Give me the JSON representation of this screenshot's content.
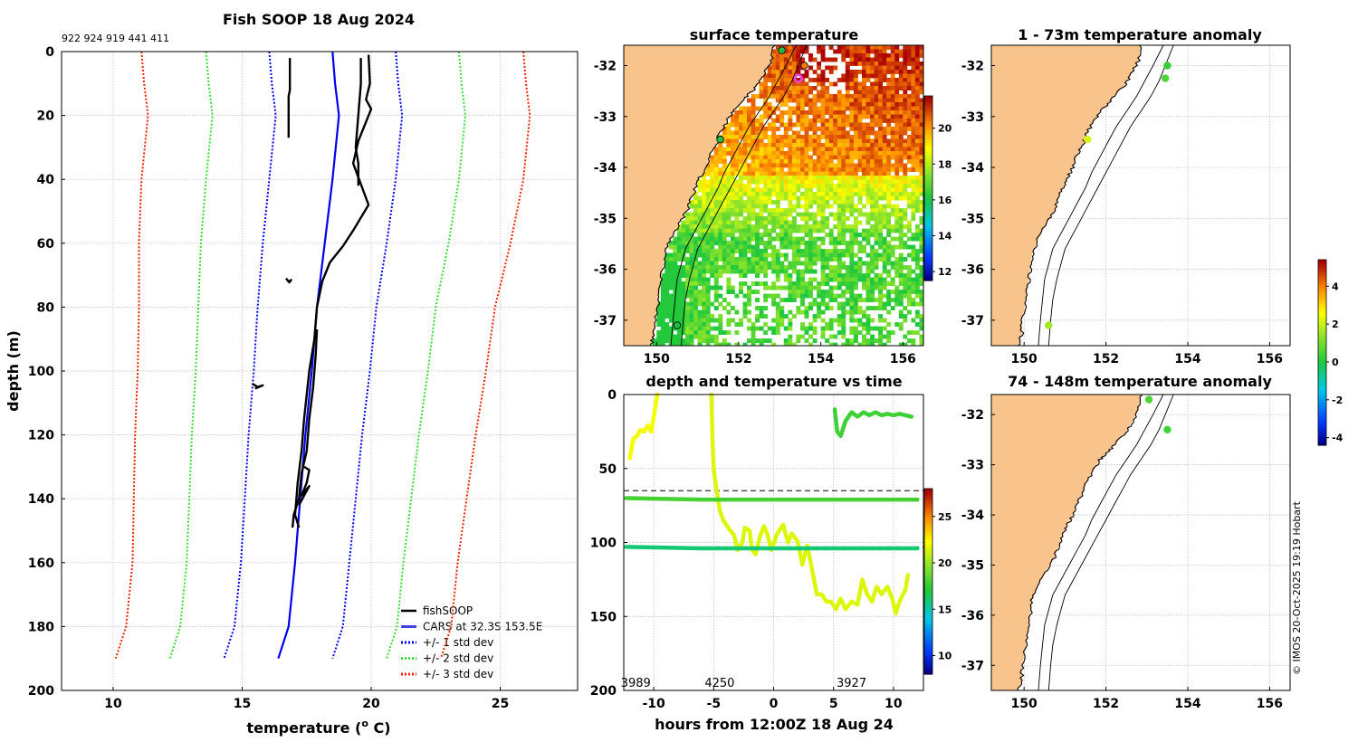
{
  "chart_data": [
    {
      "id": "profile",
      "type": "line",
      "title": "Fish SOOP 18 Aug 2024",
      "ids_text": "922 924 919 441 411",
      "xlabel": "temperature (",
      "xlabel_sup": "o",
      "xlabel_tail": " C)",
      "ylabel": "depth (m)",
      "xlim": [
        8,
        28
      ],
      "ylim": [
        200,
        0
      ],
      "xticks": [
        10,
        15,
        20,
        25
      ],
      "yticks": [
        0,
        20,
        40,
        60,
        80,
        100,
        120,
        140,
        160,
        180,
        200
      ],
      "legend": [
        "fishSOOP",
        "CARS at 32.3S 153.5E",
        "+/- 1 std dev",
        "+/- 2 std dev",
        "+/- 3 std dev"
      ],
      "legend_colors": [
        "#000000",
        "#0000ee",
        "#0000ee",
        "#33dd33",
        "#ee2200"
      ],
      "cars_mean": [
        [
          18.5,
          0
        ],
        [
          18.6,
          10
        ],
        [
          18.75,
          20
        ],
        [
          18.5,
          40
        ],
        [
          18.2,
          60
        ],
        [
          17.9,
          80
        ],
        [
          17.7,
          100
        ],
        [
          17.45,
          120
        ],
        [
          17.25,
          140
        ],
        [
          17.05,
          160
        ],
        [
          16.8,
          180
        ],
        [
          16.4,
          190
        ]
      ],
      "std1": {
        "offsets": [
          2.45,
          2.45,
          2.45,
          2.45,
          2.4,
          2.3,
          2.25,
          2.2,
          2.15,
          2.1,
          2.1,
          2.1
        ]
      },
      "std2": {
        "offsets": [
          4.9,
          4.9,
          4.9,
          4.9,
          4.8,
          4.6,
          4.5,
          4.4,
          4.3,
          4.2,
          4.2,
          4.2
        ]
      },
      "std3": {
        "offsets": [
          7.4,
          7.4,
          7.4,
          7.4,
          7.2,
          6.9,
          6.75,
          6.6,
          6.45,
          6.3,
          6.3,
          6.3
        ]
      },
      "fish_series": [
        [
          [
            19.9,
            1
          ],
          [
            19.95,
            10
          ],
          [
            19.8,
            15
          ],
          [
            20.0,
            18
          ],
          [
            19.8,
            22
          ],
          [
            19.5,
            28
          ],
          [
            19.3,
            35
          ],
          [
            19.9,
            48
          ],
          [
            19.3,
            56
          ],
          [
            18.9,
            61
          ],
          [
            18.4,
            66
          ],
          [
            18.1,
            72
          ],
          [
            17.9,
            80
          ],
          [
            17.8,
            90
          ],
          [
            17.6,
            100
          ],
          [
            17.4,
            115
          ],
          [
            17.3,
            125
          ],
          [
            17.15,
            135
          ],
          [
            17.1,
            140
          ],
          [
            17.05,
            145
          ],
          [
            17.2,
            149
          ]
        ],
        [
          [
            19.6,
            2
          ],
          [
            19.6,
            10
          ],
          [
            19.55,
            15
          ],
          [
            19.4,
            30
          ],
          [
            19.5,
            35
          ],
          [
            19.5,
            42
          ]
        ],
        [
          [
            16.85,
            2
          ],
          [
            16.85,
            12
          ],
          [
            16.8,
            14
          ],
          [
            16.8,
            27
          ]
        ],
        [
          [
            16.7,
            71
          ],
          [
            16.8,
            72
          ],
          [
            16.9,
            71.5
          ],
          [
            16.8,
            72.5
          ]
        ],
        [
          [
            15.4,
            104
          ],
          [
            15.6,
            105
          ],
          [
            15.8,
            104.5
          ],
          [
            15.5,
            105.5
          ]
        ],
        [
          [
            17.9,
            87
          ],
          [
            17.85,
            95
          ],
          [
            17.75,
            105
          ],
          [
            17.6,
            115
          ],
          [
            17.5,
            125
          ],
          [
            17.3,
            132
          ],
          [
            17.2,
            140
          ],
          [
            17.0,
            145
          ],
          [
            16.95,
            149
          ]
        ],
        [
          [
            17.4,
            130
          ],
          [
            17.6,
            131
          ],
          [
            17.5,
            135
          ],
          [
            17.3,
            139
          ],
          [
            17.6,
            136
          ],
          [
            17.2,
            142
          ]
        ]
      ]
    },
    {
      "id": "sst",
      "type": "heatmap",
      "title": "surface temperature",
      "xlim": [
        149.2,
        156.5
      ],
      "ylim": [
        -37.5,
        -31.6
      ],
      "xticks": [
        150,
        152,
        154,
        156
      ],
      "yticks": [
        -32,
        -33,
        -34,
        -35,
        -36,
        -37
      ],
      "colorbar_range": [
        11.5,
        21.8
      ],
      "colorbar_ticks": [
        12,
        14,
        16,
        18,
        20
      ],
      "markers": [
        {
          "lon": 153.05,
          "lat": -31.7,
          "color": "#22bb44"
        },
        {
          "lon": 153.6,
          "lat": -32.0,
          "color": "#ee7700"
        },
        {
          "lon": 153.45,
          "lat": -32.25,
          "color": "#ee44ee"
        },
        {
          "lon": 151.55,
          "lat": -33.45,
          "color": "#22bb44"
        },
        {
          "lon": 150.5,
          "lat": -37.1,
          "color": "#22bb44"
        }
      ]
    },
    {
      "id": "dtime",
      "type": "scatter",
      "title": "depth and temperature vs time",
      "xlabel": "hours from 12:00Z 18 Aug 24",
      "xlim": [
        -12.5,
        12.5
      ],
      "ylim": [
        200,
        0
      ],
      "xticks": [
        -10,
        -5,
        0,
        5,
        10
      ],
      "yticks": [
        0,
        50,
        100,
        150,
        200
      ],
      "dashed_depths": [
        65,
        103
      ],
      "id_labels": [
        {
          "t": -11.5,
          "label": "3989"
        },
        {
          "t": -4.5,
          "label": "4250"
        },
        {
          "t": 6.5,
          "label": "3927"
        }
      ],
      "colorbar_range": [
        8,
        28
      ],
      "colorbar_ticks": [
        10,
        15,
        20,
        25
      ],
      "tracks": [
        {
          "temp": 22.2,
          "pts": [
            [
              -12.0,
              43
            ],
            [
              -11.7,
              30
            ],
            [
              -11.4,
              28
            ],
            [
              -11.1,
              24
            ],
            [
              -10.8,
              25
            ],
            [
              -10.5,
              21
            ],
            [
              -10.2,
              25
            ],
            [
              -10.0,
              15
            ],
            [
              -9.8,
              5
            ],
            [
              -9.7,
              0
            ]
          ]
        },
        {
          "temp": 21.6,
          "pts": [
            [
              -5.2,
              0
            ],
            [
              -5.1,
              30
            ],
            [
              -5.0,
              50
            ],
            [
              -4.8,
              62
            ],
            [
              -4.5,
              78
            ],
            [
              -4.2,
              85
            ],
            [
              -3.8,
              90
            ],
            [
              -3.3,
              95
            ],
            [
              -3.0,
              105
            ],
            [
              -2.6,
              100
            ],
            [
              -2.4,
              90
            ],
            [
              -2.0,
              92
            ],
            [
              -1.8,
              105
            ],
            [
              -1.5,
              108
            ],
            [
              -1.1,
              95
            ],
            [
              -0.8,
              89
            ],
            [
              -0.5,
              95
            ],
            [
              -0.2,
              105
            ],
            [
              0.3,
              94
            ],
            [
              0.8,
              88
            ],
            [
              1.2,
              100
            ],
            [
              1.5,
              94
            ],
            [
              2.0,
              99
            ],
            [
              2.4,
              115
            ],
            [
              2.8,
              102
            ],
            [
              3.2,
              118
            ],
            [
              3.6,
              135
            ],
            [
              4.0,
              135
            ],
            [
              4.4,
              140
            ],
            [
              4.8,
              140
            ],
            [
              5.2,
              145
            ],
            [
              5.6,
              138
            ],
            [
              6.0,
              145
            ],
            [
              6.5,
              140
            ],
            [
              7.0,
              142
            ],
            [
              7.4,
              125
            ],
            [
              7.8,
              135
            ],
            [
              8.2,
              140
            ],
            [
              8.6,
              130
            ],
            [
              9.0,
              135
            ],
            [
              9.5,
              130
            ],
            [
              9.9,
              138
            ],
            [
              10.2,
              148
            ],
            [
              10.5,
              140
            ],
            [
              11.0,
              132
            ],
            [
              11.2,
              122
            ]
          ]
        },
        {
          "temp": 18.0,
          "pts": [
            [
              -12.3,
              70
            ],
            [
              -6,
              71
            ],
            [
              0,
              71
            ],
            [
              6,
              71
            ],
            [
              12,
              71
            ]
          ]
        },
        {
          "temp": 16.0,
          "pts": [
            [
              -12.3,
              103
            ],
            [
              -6,
              104
            ],
            [
              0,
              104
            ],
            [
              6,
              104
            ],
            [
              12,
              104
            ]
          ]
        },
        {
          "temp": 17.8,
          "pts": [
            [
              5.1,
              10
            ],
            [
              5.3,
              25
            ],
            [
              5.6,
              28
            ],
            [
              6.0,
              18
            ],
            [
              6.5,
              12
            ],
            [
              7.0,
              15
            ],
            [
              7.5,
              12
            ],
            [
              8.0,
              14
            ],
            [
              8.5,
              12
            ],
            [
              9.0,
              14
            ],
            [
              9.5,
              13
            ],
            [
              10.0,
              14
            ],
            [
              10.5,
              13
            ],
            [
              11.0,
              14
            ],
            [
              11.5,
              15
            ]
          ]
        }
      ]
    },
    {
      "id": "anom1",
      "type": "scatter",
      "title": "1 - 73m temperature anomaly",
      "xlim": [
        149.2,
        156.5
      ],
      "ylim": [
        -37.5,
        -31.6
      ],
      "xticks": [
        150,
        152,
        154,
        156
      ],
      "yticks": [
        -32,
        -33,
        -34,
        -35,
        -36,
        -37
      ],
      "points": [
        {
          "lon": 153.5,
          "lat": -32.0,
          "anom": 0.3
        },
        {
          "lon": 153.45,
          "lat": -32.25,
          "anom": 0.6
        },
        {
          "lon": 151.55,
          "lat": -33.45,
          "anom": 2.2
        },
        {
          "lon": 150.6,
          "lat": -37.1,
          "anom": 1.6
        }
      ]
    },
    {
      "id": "anom2",
      "type": "scatter",
      "title": "74 - 148m temperature anomaly",
      "xlim": [
        149.2,
        156.5
      ],
      "ylim": [
        -37.5,
        -31.6
      ],
      "xticks": [
        150,
        152,
        154,
        156
      ],
      "yticks": [
        -32,
        -33,
        -34,
        -35,
        -36,
        -37
      ],
      "points": [
        {
          "lon": 153.05,
          "lat": -31.7,
          "anom": 0.6
        },
        {
          "lon": 153.5,
          "lat": -32.3,
          "anom": 0.4
        }
      ],
      "colorbar_range": [
        -4.4,
        5.4
      ],
      "colorbar_ticks": [
        -4,
        -2,
        0,
        2,
        4
      ]
    }
  ],
  "coastline": [
    [
      152.85,
      -31.6
    ],
    [
      152.8,
      -31.9
    ],
    [
      152.6,
      -32.2
    ],
    [
      152.45,
      -32.4
    ],
    [
      152.2,
      -32.6
    ],
    [
      152.05,
      -32.75
    ],
    [
      151.85,
      -32.9
    ],
    [
      151.75,
      -33.05
    ],
    [
      151.55,
      -33.3
    ],
    [
      151.45,
      -33.55
    ],
    [
      151.3,
      -33.75
    ],
    [
      151.2,
      -34.0
    ],
    [
      151.05,
      -34.2
    ],
    [
      150.95,
      -34.4
    ],
    [
      150.85,
      -34.6
    ],
    [
      150.75,
      -34.85
    ],
    [
      150.55,
      -35.1
    ],
    [
      150.35,
      -35.4
    ],
    [
      150.2,
      -35.7
    ],
    [
      150.15,
      -36.0
    ],
    [
      150.1,
      -36.3
    ],
    [
      150.05,
      -36.6
    ],
    [
      149.95,
      -37.0
    ],
    [
      149.95,
      -37.3
    ],
    [
      149.85,
      -37.5
    ]
  ],
  "contour200": [
    [
      153.4,
      -31.6
    ],
    [
      153.15,
      -32.0
    ],
    [
      152.95,
      -32.3
    ],
    [
      152.75,
      -32.6
    ],
    [
      152.5,
      -32.9
    ],
    [
      152.25,
      -33.2
    ],
    [
      152.05,
      -33.5
    ],
    [
      151.85,
      -33.8
    ],
    [
      151.65,
      -34.1
    ],
    [
      151.5,
      -34.4
    ],
    [
      151.3,
      -34.7
    ],
    [
      151.1,
      -35.0
    ],
    [
      150.9,
      -35.3
    ],
    [
      150.7,
      -35.6
    ],
    [
      150.6,
      -35.9
    ],
    [
      150.5,
      -36.2
    ],
    [
      150.45,
      -36.6
    ],
    [
      150.4,
      -37.0
    ],
    [
      150.35,
      -37.5
    ]
  ],
  "contour1000": [
    [
      153.65,
      -31.6
    ],
    [
      153.45,
      -32.0
    ],
    [
      153.3,
      -32.3
    ],
    [
      153.1,
      -32.6
    ],
    [
      152.85,
      -32.9
    ],
    [
      152.6,
      -33.2
    ],
    [
      152.4,
      -33.5
    ],
    [
      152.2,
      -33.8
    ],
    [
      152.0,
      -34.1
    ],
    [
      151.8,
      -34.4
    ],
    [
      151.6,
      -34.7
    ],
    [
      151.4,
      -35.0
    ],
    [
      151.2,
      -35.3
    ],
    [
      151.0,
      -35.6
    ],
    [
      150.9,
      -35.9
    ],
    [
      150.8,
      -36.2
    ],
    [
      150.7,
      -36.6
    ],
    [
      150.65,
      -37.0
    ],
    [
      150.6,
      -37.5
    ]
  ],
  "credit": "© IMOS 20-Oct-2025 19:19 Hobart",
  "colors": {
    "land": "#f9c38c",
    "grid": "#bbbbbb",
    "coast": "#000000"
  }
}
